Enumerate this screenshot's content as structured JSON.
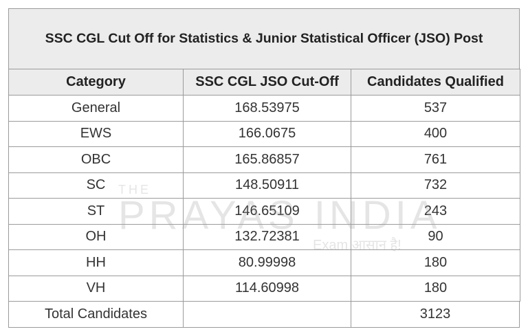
{
  "table": {
    "title": "SSC CGL Cut Off for Statistics & Junior Statistical Officer (JSO) Post",
    "columns": [
      "Category",
      "SSC CGL JSO Cut-Off",
      "Candidates Qualified"
    ],
    "rows": [
      [
        "General",
        168.53975,
        537
      ],
      [
        "EWS",
        166.0675,
        400
      ],
      [
        "OBC",
        165.86857,
        761
      ],
      [
        "SC",
        148.50911,
        732
      ],
      [
        "ST",
        146.65109,
        243
      ],
      [
        "OH",
        132.72381,
        90
      ],
      [
        "HH",
        80.99998,
        180
      ],
      [
        "VH",
        114.60998,
        180
      ]
    ],
    "total": {
      "label": "Total Candidates",
      "value": 3123
    }
  },
  "watermark": {
    "small": "THE",
    "brand": "PRAYAS INDIA",
    "tagline": "Exam आसान है!"
  }
}
